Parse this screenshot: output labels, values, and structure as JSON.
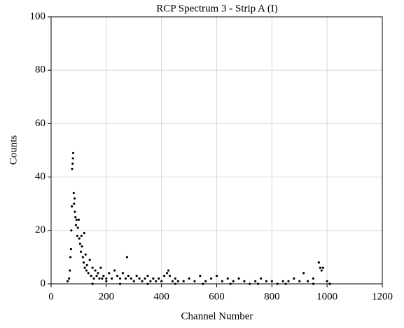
{
  "chart_data": {
    "type": "scatter",
    "title": "RCP Spectrum 3 - Strip A (I)",
    "x_label": "Channel Number",
    "y_label": "Counts",
    "color": "#000000",
    "grid": true,
    "xlim": [
      0,
      1200
    ],
    "xticks": [
      0,
      200,
      400,
      600,
      800,
      1000,
      1200
    ],
    "ylim": [
      0,
      100
    ],
    "yticks": [
      0,
      20,
      40,
      60,
      80,
      100
    ],
    "x": [
      60,
      65,
      68,
      70,
      72,
      73,
      75,
      76,
      78,
      79,
      80,
      82,
      83,
      85,
      86,
      88,
      90,
      92,
      95,
      97,
      100,
      102,
      105,
      108,
      110,
      112,
      115,
      118,
      120,
      122,
      125,
      128,
      130,
      135,
      140,
      145,
      150,
      155,
      160,
      165,
      170,
      175,
      180,
      185,
      190,
      200,
      210,
      220,
      230,
      240,
      250,
      260,
      270,
      275,
      280,
      290,
      300,
      310,
      320,
      330,
      340,
      350,
      360,
      370,
      380,
      390,
      400,
      410,
      420,
      425,
      430,
      440,
      450,
      460,
      480,
      500,
      520,
      540,
      560,
      580,
      600,
      620,
      640,
      660,
      680,
      700,
      720,
      740,
      760,
      780,
      800,
      820,
      840,
      860,
      880,
      900,
      915,
      930,
      950,
      970,
      975,
      980,
      985,
      1000,
      1010,
      150,
      200,
      250,
      350,
      450,
      550,
      650,
      750,
      850,
      950
    ],
    "values": [
      1,
      2,
      5,
      10,
      13,
      20,
      29,
      43,
      45,
      47,
      49,
      34,
      30,
      32,
      27,
      25,
      22,
      24,
      18,
      21,
      24,
      17,
      15,
      12,
      18,
      14,
      10,
      8,
      19,
      6,
      11,
      5,
      7,
      4,
      9,
      3,
      6,
      2,
      5,
      3,
      4,
      2,
      6,
      2,
      3,
      2,
      4,
      2,
      5,
      3,
      2,
      4,
      2,
      10,
      3,
      2,
      1,
      3,
      2,
      1,
      2,
      3,
      1,
      2,
      1,
      2,
      1,
      3,
      4,
      5,
      3,
      1,
      2,
      1,
      1,
      2,
      1,
      3,
      1,
      2,
      3,
      1,
      2,
      1,
      2,
      1,
      0,
      1,
      2,
      1,
      1,
      0,
      1,
      1,
      2,
      1,
      4,
      1,
      2,
      8,
      6,
      5,
      6,
      1,
      0,
      0,
      1,
      0,
      0,
      0,
      0,
      0,
      0,
      0,
      0
    ]
  }
}
